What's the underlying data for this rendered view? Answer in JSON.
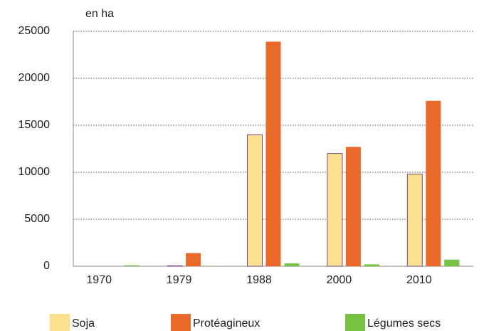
{
  "chart_data": {
    "type": "bar",
    "y_label": "en ha",
    "categories": [
      "1970",
      "1979",
      "1988",
      "2000",
      "2010"
    ],
    "series": [
      {
        "name": "Soja",
        "color": "#fde08f",
        "stroke": "#7a4a8c",
        "values": [
          0,
          50,
          14000,
          12000,
          9800
        ]
      },
      {
        "name": "Protéagineux",
        "color": "#e8692a",
        "values": [
          0,
          1400,
          23900,
          12700,
          17600
        ]
      },
      {
        "name": "Légumes secs",
        "color": "#79c143",
        "values": [
          100,
          30,
          300,
          200,
          700
        ]
      }
    ],
    "ylim": [
      0,
      25000
    ],
    "yticks": [
      0,
      5000,
      10000,
      15000,
      20000,
      25000
    ],
    "grid": true,
    "legend": "bottom"
  }
}
